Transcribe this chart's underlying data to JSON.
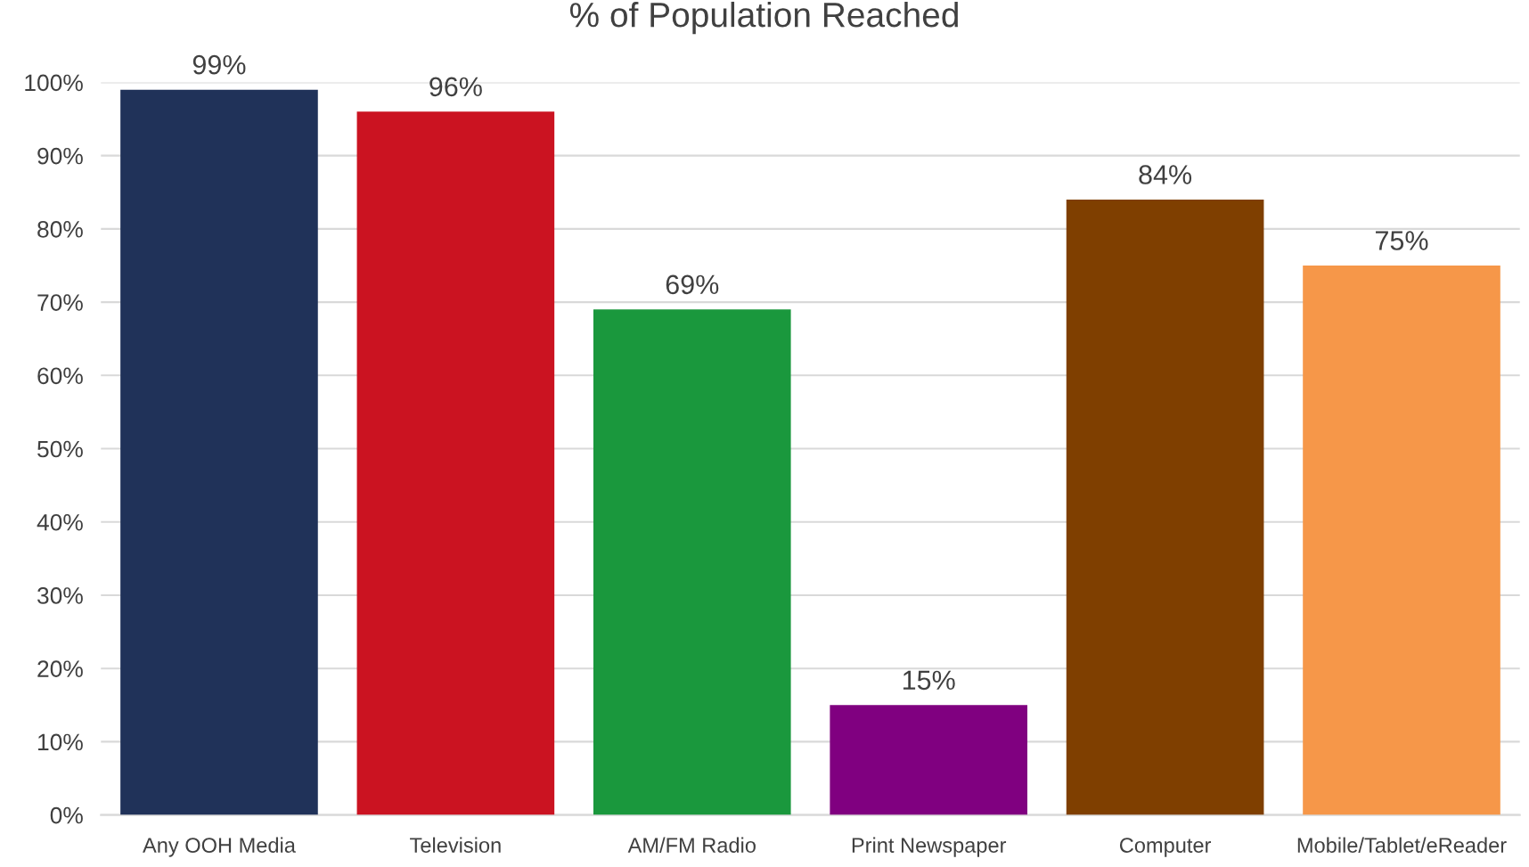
{
  "chart_data": {
    "type": "bar",
    "title": "% of Population Reached",
    "categories": [
      "Any OOH Media",
      "Television",
      "AM/FM Radio",
      "Print Newspaper",
      "Computer",
      "Mobile/Tablet/eReader"
    ],
    "values": [
      99,
      96,
      69,
      15,
      84,
      75
    ],
    "value_labels": [
      "99%",
      "96%",
      "69%",
      "15%",
      "84%",
      "75%"
    ],
    "colors": [
      "#203259",
      "#cb1321",
      "#1a983d",
      "#800080",
      "#7f3f00",
      "#f69749"
    ],
    "ylim": [
      0,
      100
    ],
    "yticks": [
      {
        "value": 0,
        "label": "0%"
      },
      {
        "value": 10,
        "label": "10%"
      },
      {
        "value": 20,
        "label": "20%"
      },
      {
        "value": 30,
        "label": "30%"
      },
      {
        "value": 40,
        "label": "40%"
      },
      {
        "value": 50,
        "label": "50%"
      },
      {
        "value": 60,
        "label": "60%"
      },
      {
        "value": 70,
        "label": "70%"
      },
      {
        "value": 80,
        "label": "80%"
      },
      {
        "value": 90,
        "label": "90%"
      },
      {
        "value": 100,
        "label": "100%"
      }
    ],
    "grid": "y"
  }
}
